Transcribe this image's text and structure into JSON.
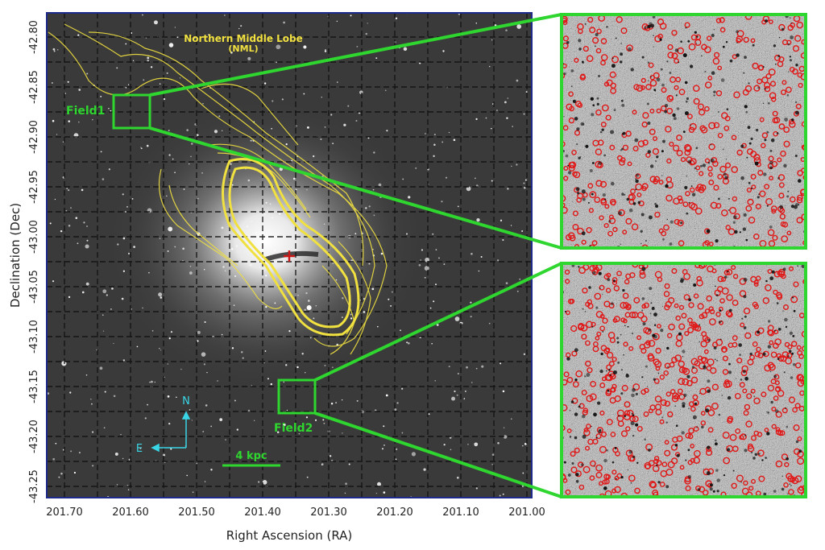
{
  "figure": {
    "x_axis": {
      "title": "Right Ascension (RA)",
      "ticks": [
        "201.70",
        "201.60",
        "201.50",
        "201.40",
        "201.30",
        "201.20",
        "201.10",
        "201.00"
      ]
    },
    "y_axis": {
      "title": "Declination (Dec)",
      "ticks": [
        "-42.80",
        "-42.85",
        "-42.90",
        "-42.95",
        "-43.00",
        "-43.05",
        "-43.10",
        "-43.15",
        "-43.20",
        "-43.25"
      ]
    },
    "annotations": {
      "lobe_title": "Northern Middle Lobe",
      "lobe_abbrev": "(NML)",
      "field1": "Field1",
      "field2": "Field2",
      "scale_bar": "4 kpc",
      "compass_north": "N",
      "compass_east": "E"
    },
    "colors": {
      "highlight": "#2fd62f",
      "contours": "#f0e040",
      "markers": "#e01818",
      "compass": "#39d6e6",
      "frame": "#1d2a8a"
    }
  }
}
